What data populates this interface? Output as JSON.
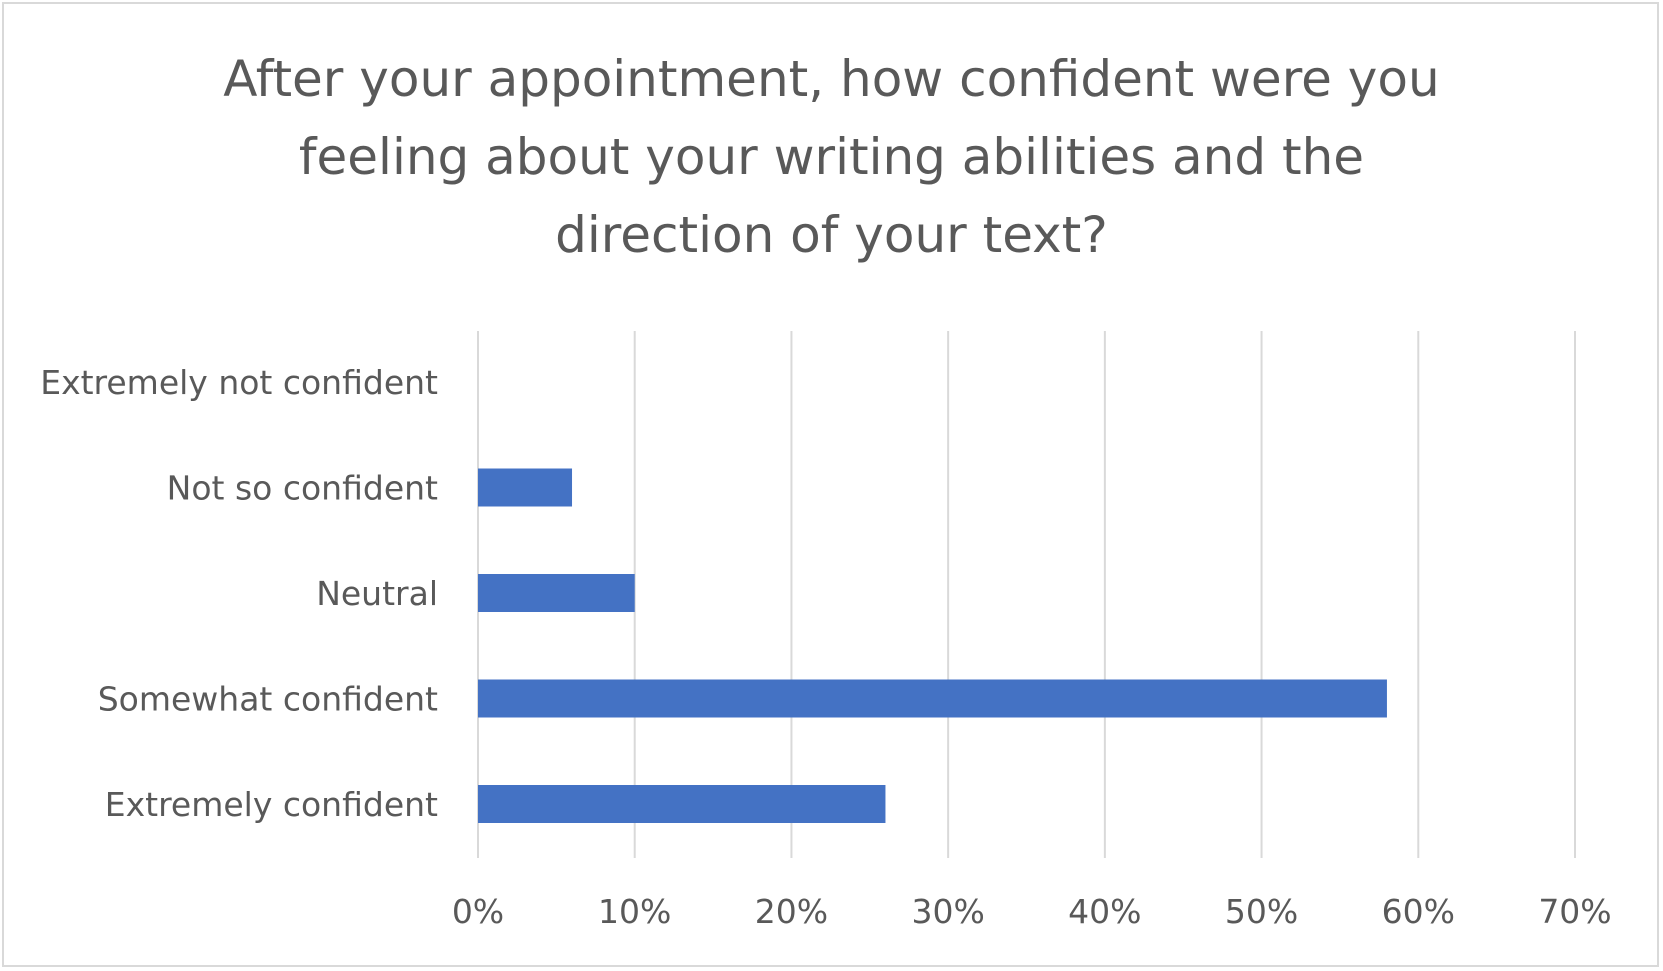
{
  "chart_data": {
    "type": "bar",
    "orientation": "horizontal",
    "title_lines": [
      "After your appointment, how confident were you",
      "feeling about your writing abilities and the",
      "direction of your text?"
    ],
    "categories": [
      "Extremely not confident",
      "Not so confident",
      "Neutral",
      "Somewhat confident",
      "Extremely confident"
    ],
    "values": [
      0,
      6,
      10,
      58,
      26
    ],
    "x_ticks": [
      "0%",
      "10%",
      "20%",
      "30%",
      "40%",
      "50%",
      "60%",
      "70%"
    ],
    "xlim": [
      0,
      70
    ],
    "xlabel": "",
    "ylabel": "",
    "grid": "vertical",
    "legend": "none",
    "bar_color": "#4472c4",
    "grid_color": "#d9d9d9",
    "text_color": "#595959"
  }
}
